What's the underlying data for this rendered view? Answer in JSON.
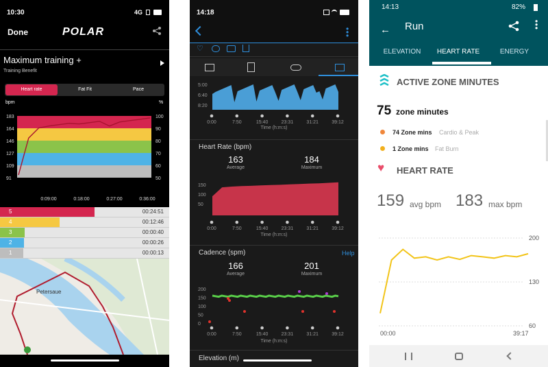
{
  "polar": {
    "status": {
      "time": "10:30",
      "network": "4G"
    },
    "done": "Done",
    "logo": "POLAR",
    "section_title": "Maximum training +",
    "section_sub": "Training Benefit",
    "segments": [
      "Heart rate",
      "Fat Fit",
      "Pace"
    ],
    "left_unit": "bpm",
    "right_unit": "%",
    "y_left": [
      "183",
      "164",
      "146",
      "127",
      "109",
      "91"
    ],
    "y_right": [
      "100",
      "90",
      "80",
      "70",
      "60",
      "50"
    ],
    "x_ticks": [
      "0:09:00",
      "0:18:00",
      "0:27:00",
      "0:36:00"
    ],
    "zones": [
      {
        "zone": "5",
        "time": "00:24:51",
        "fraction": 0.612,
        "color": "#d4264f"
      },
      {
        "zone": "4",
        "time": "00:12:46",
        "fraction": 0.314,
        "color": "#f5c842"
      },
      {
        "zone": "3",
        "time": "00:00:40",
        "fraction": 0.016,
        "color": "#8bc34a"
      },
      {
        "zone": "2",
        "time": "00:00:26",
        "fraction": 0.011,
        "color": "#4fb3e6"
      },
      {
        "zone": "1",
        "time": "00:00:13",
        "fraction": 0.005,
        "color": "#bdbdbd"
      }
    ],
    "map_label": "Petersaue"
  },
  "garmin": {
    "status": {
      "time": "14:18"
    },
    "pace_ticks": [
      "5:00",
      "6:40",
      "8:20"
    ],
    "x_ticks": [
      "0:00",
      "7:50",
      "15:40",
      "23:31",
      "31:21",
      "39:12"
    ],
    "x_label": "Time (h:m:s)",
    "hr_title": "Heart Rate (bpm)",
    "hr_avg": "163",
    "hr_avg_label": "Average",
    "hr_max": "184",
    "hr_max_label": "Maximum",
    "hr_ticks": [
      "150",
      "100",
      "50"
    ],
    "cad_title": "Cadence (spm)",
    "help": "Help",
    "cad_avg": "166",
    "cad_avg_label": "Average",
    "cad_max": "201",
    "cad_max_label": "Maximum",
    "cad_ticks": [
      "200",
      "150",
      "100",
      "50",
      "0"
    ],
    "elev_title": "Elevation (m)"
  },
  "fitbit": {
    "status": {
      "time": "14:13",
      "battery": "82%"
    },
    "title": "Run",
    "tabs": [
      "ELEVATION",
      "HEART RATE",
      "ENERGY"
    ],
    "azm_title": "ACTIVE ZONE MINUTES",
    "zone_total": "75",
    "zone_total_label": "zone minutes",
    "azm_rows": [
      {
        "value": "74 Zone mins",
        "label": "Cardio & Peak",
        "color": "#f0873b"
      },
      {
        "value": "1 Zone mins",
        "label": "Fat Burn",
        "color": "#f2b01e"
      }
    ],
    "hr_title": "HEART RATE",
    "avg": "159",
    "avg_label": "avg bpm",
    "max": "183",
    "max_label": "max bpm",
    "y_ticks": [
      "200",
      "130",
      "60"
    ],
    "x_start": "00:00",
    "x_end": "39:17"
  },
  "chart_data": [
    {
      "type": "line",
      "title": "Heart rate",
      "ylabel": "bpm",
      "ylim": [
        91,
        183
      ],
      "x_ticks": [
        "0:09:00",
        "0:18:00",
        "0:27:00",
        "0:36:00"
      ],
      "series": [
        {
          "values": [
            95,
            150,
            165,
            168,
            170,
            172,
            171,
            173,
            175,
            168,
            174,
            176,
            178,
            180
          ]
        }
      ]
    },
    {
      "type": "area",
      "title": "Heart Rate (bpm)",
      "ylim": [
        50,
        190
      ],
      "series": [
        {
          "values": [
            125,
            160,
            163,
            165,
            166,
            168,
            169,
            170,
            172,
            173,
            175,
            176,
            178,
            180
          ]
        }
      ]
    },
    {
      "type": "line",
      "ylim": [
        60,
        200
      ],
      "series": [
        {
          "values": [
            80,
            165,
            182,
            168,
            170,
            165,
            170,
            166,
            172,
            170,
            168,
            172,
            170,
            175
          ]
        }
      ]
    }
  ]
}
